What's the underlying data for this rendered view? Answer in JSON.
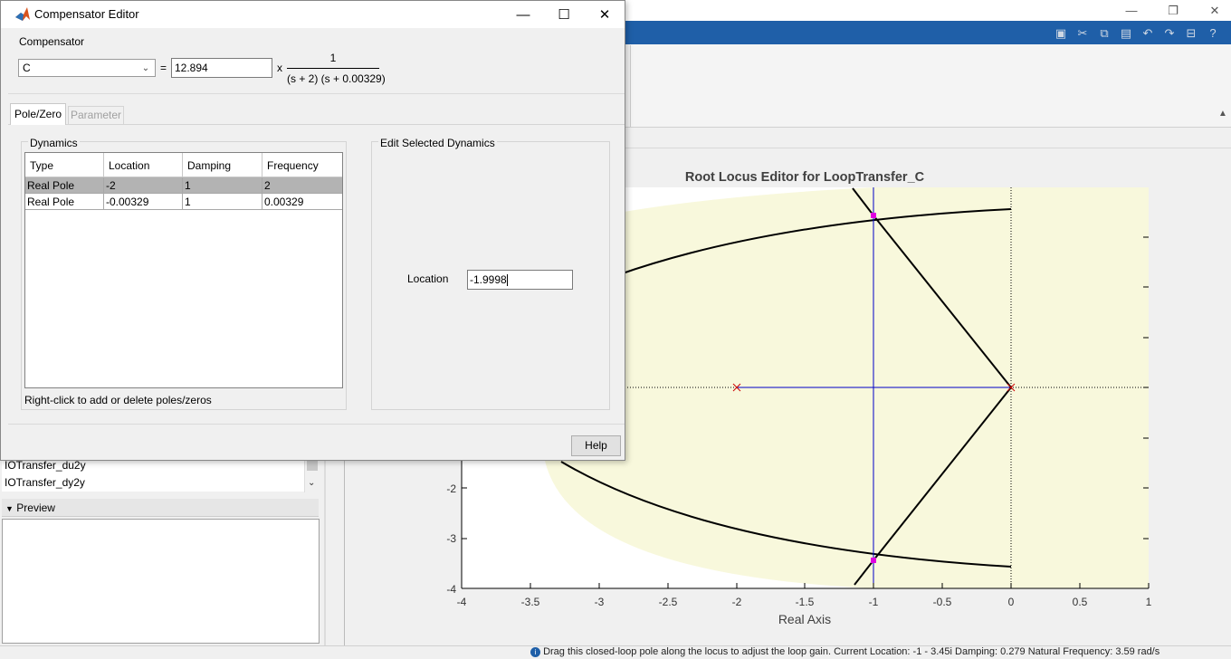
{
  "dialog": {
    "title": "Compensator Editor",
    "compensator_group_label": "Compensator",
    "compensator_select_value": "C",
    "equals": "=",
    "gain_value": "12.894",
    "times": "x",
    "tf_numerator": "1",
    "tf_denominator": "(s + 2) (s + 0.00329)",
    "tabs": [
      {
        "label": "Pole/Zero",
        "active": true
      },
      {
        "label": "Parameter",
        "active": false
      }
    ],
    "dynamics": {
      "group_label": "Dynamics",
      "columns": [
        "Type",
        "Location",
        "Damping",
        "Frequency"
      ],
      "rows": [
        {
          "type": "Real Pole",
          "location": "-2",
          "damping": "1",
          "frequency": "2",
          "selected": true
        },
        {
          "type": "Real Pole",
          "location": "-0.00329",
          "damping": "1",
          "frequency": "0.00329",
          "selected": false
        }
      ],
      "hint": "Right-click to add or delete poles/zeros"
    },
    "edit": {
      "group_label": "Edit Selected Dynamics",
      "location_label": "Location",
      "location_value": "-1.9998"
    },
    "help_label": "Help"
  },
  "left_panel": {
    "items": [
      "IOTransfer_du2y",
      "IOTransfer_dy2y"
    ],
    "preview_label": "Preview"
  },
  "plot": {
    "title": "Root Locus Editor for LoopTransfer_C",
    "x_label": "Real Axis",
    "x_ticks": [
      "-4",
      "-3.5",
      "-3",
      "-2.5",
      "-2",
      "-1.5",
      "-1",
      "-0.5",
      "0",
      "0.5",
      "1"
    ],
    "y_ticks": [
      "-2",
      "-3",
      "-4"
    ]
  },
  "status": {
    "text": "Drag this closed-loop pole along the locus to adjust the loop gain. Current Location: -1 - 3.45i    Damping: 0.279    Natural Frequency: 3.59 rad/s"
  },
  "colors": {
    "titlebar_blue": "#1f5fa8",
    "stability_region": "#f8f8dc",
    "locus": "#000000",
    "axis_line": "#0000c8",
    "pole_marker": "#cc0000",
    "closed_loop_pole": "#e000e0"
  },
  "chart_data": {
    "type": "scatter",
    "title": "Root Locus Editor for LoopTransfer_C",
    "xlabel": "Real Axis",
    "ylabel": "",
    "xlim": [
      -4,
      1
    ],
    "ylim_visible": [
      -4,
      0
    ],
    "open_loop_poles": [
      [
        -2,
        0
      ],
      [
        0,
        0
      ]
    ],
    "closed_loop_poles": [
      [
        -1,
        3.45
      ],
      [
        -1,
        -3.45
      ]
    ],
    "x_ticks": [
      -4,
      -3.5,
      -3,
      -2.5,
      -2,
      -1.5,
      -1,
      -0.5,
      0,
      0.5,
      1
    ],
    "y_ticks": [
      -2,
      -3,
      -4
    ]
  }
}
